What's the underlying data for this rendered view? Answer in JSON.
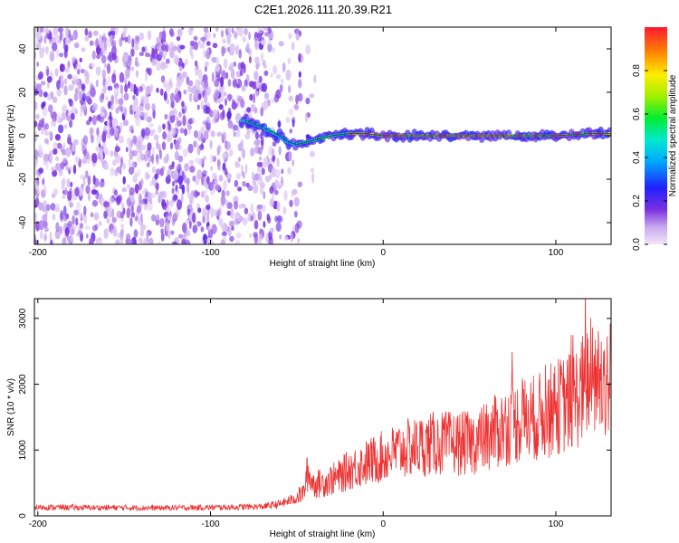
{
  "title": "C2E1.2026.111.20.39.R21",
  "chart_data": [
    {
      "type": "heatmap",
      "xlabel": "Height of straight line (km)",
      "ylabel": "Frequency (Hz)",
      "xlim": [
        -202,
        132
      ],
      "ylim": [
        -50,
        50
      ],
      "xticks": [
        -200,
        -100,
        0,
        100
      ],
      "yticks": [
        -40,
        -20,
        0,
        20,
        40
      ],
      "xtick_labels": [
        "-200",
        "-100",
        "0",
        "100"
      ],
      "ytick_labels": [
        "-40",
        "-20",
        "0",
        "20",
        "40"
      ],
      "description_of_content": "broadband noise below ~-60 km, narrow signal line near 0 Hz above",
      "signal_line": {
        "x": [
          -80,
          -70,
          -60,
          -55,
          -50,
          -40,
          -30,
          -20,
          -10,
          0,
          20,
          40,
          60,
          80,
          100,
          120,
          132
        ],
        "y": [
          7,
          4,
          0,
          -3,
          -4,
          -2,
          0,
          1,
          1,
          0,
          0,
          0,
          0,
          0,
          0,
          1,
          1
        ]
      },
      "colorbar": {
        "label": "Normalized spectral amplitude",
        "range": [
          0,
          1
        ],
        "ticks": [
          0.0,
          0.2,
          0.4,
          0.6,
          0.8
        ],
        "tick_labels": [
          "0.0",
          "0.2",
          "0.4",
          "0.6",
          "0.8"
        ]
      }
    },
    {
      "type": "line",
      "xlabel": "Height of straight line (km)",
      "ylabel": "SNR (10 * v/v)",
      "xlim": [
        -202,
        132
      ],
      "ylim": [
        0,
        3300
      ],
      "xticks": [
        -200,
        -100,
        0,
        100
      ],
      "yticks": [
        0,
        1000,
        2000,
        3000
      ],
      "xtick_labels": [
        "-200",
        "-100",
        "0",
        "100"
      ],
      "ytick_labels": [
        "0",
        "1000",
        "2000",
        "3000"
      ],
      "series": [
        {
          "name": "SNR",
          "color": "#ee3333",
          "x": [
            -202,
            -190,
            -170,
            -150,
            -130,
            -110,
            -90,
            -70,
            -60,
            -52,
            -46,
            -44,
            -40,
            -35,
            -30,
            -25,
            -20,
            -10,
            0,
            10,
            20,
            30,
            40,
            50,
            60,
            70,
            80,
            90,
            100,
            105,
            110,
            115,
            120,
            125,
            132
          ],
          "y": [
            130,
            130,
            125,
            125,
            120,
            125,
            130,
            140,
            180,
            250,
            350,
            650,
            480,
            500,
            550,
            600,
            700,
            800,
            900,
            1000,
            1050,
            1100,
            1100,
            1100,
            1200,
            1350,
            1450,
            1500,
            1650,
            1700,
            1750,
            1900,
            2100,
            2050,
            2100
          ]
        }
      ]
    }
  ]
}
